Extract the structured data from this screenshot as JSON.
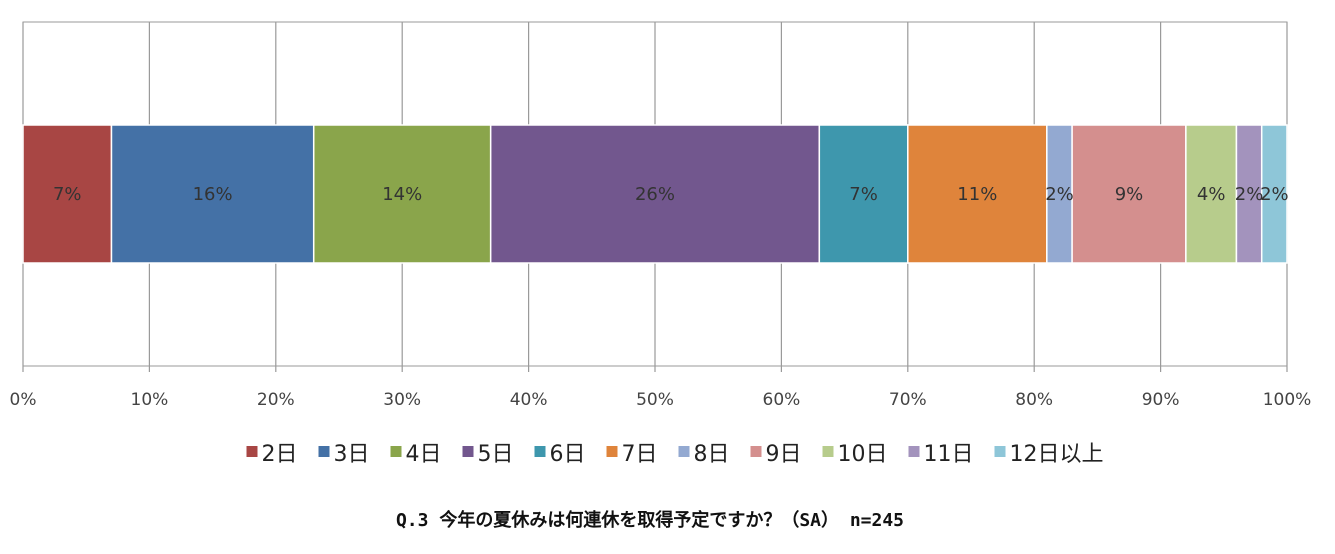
{
  "chart_data": {
    "type": "bar",
    "orientation": "horizontal",
    "stacked": "percent",
    "categories": [
      "Q.3"
    ],
    "series": [
      {
        "name": "2日",
        "values": [
          7
        ],
        "label": "7%",
        "color": "#a84644"
      },
      {
        "name": "3日",
        "values": [
          16
        ],
        "label": "16%",
        "color": "#4471a6"
      },
      {
        "name": "4日",
        "values": [
          14
        ],
        "label": "14%",
        "color": "#8aa54b"
      },
      {
        "name": "5日",
        "values": [
          26
        ],
        "label": "26%",
        "color": "#72578e"
      },
      {
        "name": "6日",
        "values": [
          7
        ],
        "label": "7%",
        "color": "#3e97ad"
      },
      {
        "name": "7日",
        "values": [
          11
        ],
        "label": "11%",
        "color": "#df843b"
      },
      {
        "name": "8日",
        "values": [
          2
        ],
        "label": "2%",
        "color": "#93a9d1"
      },
      {
        "name": "9日",
        "values": [
          9
        ],
        "label": "9%",
        "color": "#d48f8e"
      },
      {
        "name": "10日",
        "values": [
          4
        ],
        "label": "4%",
        "color": "#b7cc8c"
      },
      {
        "name": "11日",
        "values": [
          2
        ],
        "label": "2%",
        "color": "#a393bd"
      },
      {
        "name": "12日以上",
        "values": [
          2
        ],
        "label": "2%",
        "color": "#8ec6d8"
      }
    ],
    "xlim": [
      0,
      100
    ],
    "x_ticks": [
      "0%",
      "10%",
      "20%",
      "30%",
      "40%",
      "50%",
      "60%",
      "70%",
      "80%",
      "90%",
      "100%"
    ],
    "grid": true,
    "legend_position": "bottom",
    "title": "Q.3 今年の夏休みは何連休を取得予定ですか？（SA） n=245"
  }
}
